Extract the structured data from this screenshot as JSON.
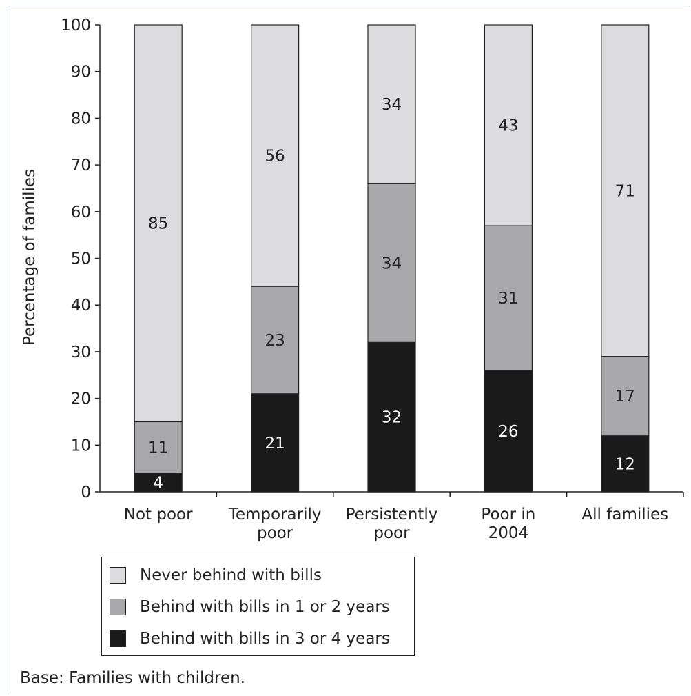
{
  "chart_data": {
    "type": "bar",
    "stacked": true,
    "categories": [
      [
        "Not poor"
      ],
      [
        "Temporarily",
        "poor"
      ],
      [
        "Persistently",
        "poor"
      ],
      [
        "Poor in",
        "2004"
      ],
      [
        "All families"
      ]
    ],
    "series": [
      {
        "name": "Behind with bills in 3 or 4 years",
        "color": "#1a1a1a",
        "label_color": "#ffffff",
        "values": [
          4,
          21,
          32,
          26,
          12
        ]
      },
      {
        "name": "Behind with bills in 1 or 2 years",
        "color": "#a9a9ac",
        "label_color": "#222222",
        "values": [
          11,
          23,
          34,
          31,
          17
        ]
      },
      {
        "name": "Never behind with bills",
        "color": "#dcdcde",
        "label_color": "#222222",
        "values": [
          85,
          56,
          34,
          43,
          71
        ]
      }
    ],
    "legend_order": [
      2,
      1,
      0
    ],
    "ylabel": "Percentage of families",
    "ylim": [
      0,
      100
    ],
    "yticks": [
      0,
      10,
      20,
      30,
      40,
      50,
      60,
      70,
      80,
      90,
      100
    ],
    "grid": false,
    "legend_position": "bottom-left"
  },
  "footnote": "Base: Families with children."
}
